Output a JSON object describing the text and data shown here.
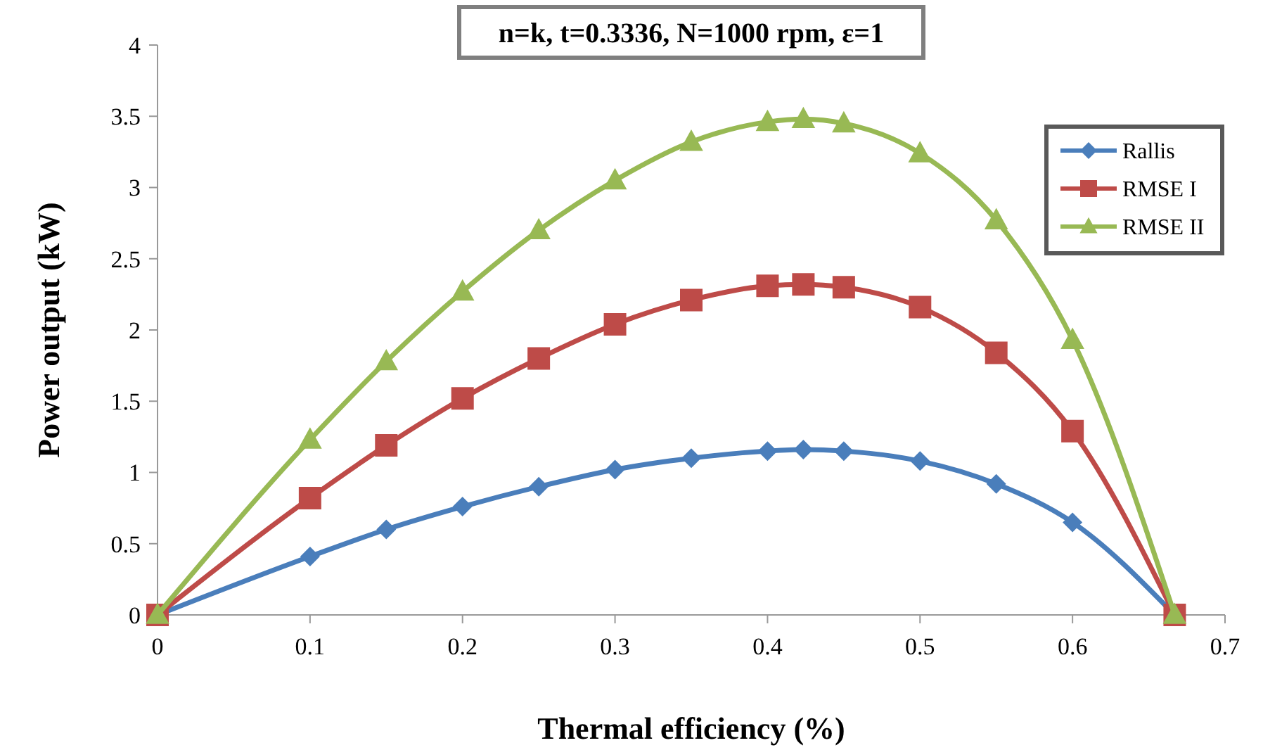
{
  "chart_data": {
    "type": "line",
    "title": "n=k, t=0.3336, N=1000 rpm, ε=1",
    "xlabel": "Thermal efficiency (%)",
    "ylabel": "Power output (kW)",
    "x": [
      0,
      0.1,
      0.15,
      0.2,
      0.25,
      0.3,
      0.35,
      0.4,
      0.4235,
      0.45,
      0.5,
      0.55,
      0.6,
      0.667
    ],
    "series": [
      {
        "name": "Rallis",
        "color": "#4a7ebb",
        "marker": "diamond",
        "values": [
          0,
          0.41,
          0.6,
          0.76,
          0.9,
          1.02,
          1.1,
          1.15,
          1.16,
          1.15,
          1.08,
          0.92,
          0.65,
          0
        ]
      },
      {
        "name": "RMSE I",
        "color": "#be4b48",
        "marker": "square",
        "values": [
          0,
          0.82,
          1.19,
          1.52,
          1.8,
          2.04,
          2.21,
          2.31,
          2.32,
          2.3,
          2.16,
          1.84,
          1.29,
          0
        ]
      },
      {
        "name": "RMSE II",
        "color": "#98b954",
        "marker": "triangle",
        "values": [
          0,
          1.23,
          1.78,
          2.27,
          2.7,
          3.05,
          3.32,
          3.46,
          3.48,
          3.45,
          3.24,
          2.77,
          1.93,
          0
        ]
      }
    ],
    "xlim": [
      0,
      0.7
    ],
    "xticks": [
      0,
      0.1,
      0.2,
      0.3,
      0.4,
      0.5,
      0.6,
      0.7
    ],
    "ylim": [
      0,
      4
    ],
    "yticks": [
      0,
      0.5,
      1,
      1.5,
      2,
      2.5,
      3,
      3.5,
      4
    ],
    "legend": "top right",
    "grid": false
  }
}
